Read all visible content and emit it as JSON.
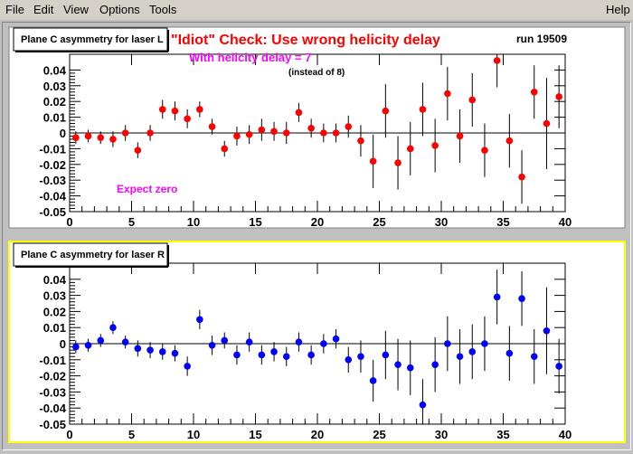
{
  "menu": {
    "file": "File",
    "edit": "Edit",
    "view": "View",
    "options": "Options",
    "tools": "Tools",
    "help": "Help"
  },
  "colors": {
    "top_markers": "#ff0000",
    "bottom_markers": "#0000ff",
    "annotation_red": "#ff0000",
    "annotation_magenta": "#ff00ff",
    "bottom_pad_border": "#ffff00"
  },
  "annotations": {
    "headline": "\"Idiot\" Check:  Use wrong helicity delay",
    "run": "run 19509",
    "delay": "With  helicity delay =  7",
    "instead": "(instead of 8)",
    "expect": "Expect zero"
  },
  "chart_data": [
    {
      "type": "scatter",
      "title": "Plane C asymmetry for laser L",
      "xlim": [
        0,
        40
      ],
      "ylim": [
        -0.05,
        0.05
      ],
      "xticks": [
        0,
        5,
        10,
        15,
        20,
        25,
        30,
        35,
        40
      ],
      "xtick_labels": [
        "0",
        "5",
        "10",
        "15",
        "20",
        "25",
        "30",
        "35",
        "40"
      ],
      "yticks": [
        -0.05,
        -0.04,
        -0.03,
        -0.02,
        -0.01,
        0,
        0.01,
        0.02,
        0.03,
        0.04
      ],
      "ytick_labels": [
        "-0.05",
        "-0.04",
        "-0.03",
        "-0.02",
        "-0.01",
        "0",
        "0.01",
        "0.02",
        "0.03",
        "0.04"
      ],
      "x": [
        0.5,
        1.5,
        2.5,
        3.5,
        4.5,
        5.5,
        6.5,
        7.5,
        8.5,
        9.5,
        10.5,
        11.5,
        12.5,
        13.5,
        14.5,
        15.5,
        16.5,
        17.5,
        18.5,
        19.5,
        20.5,
        21.5,
        22.5,
        23.5,
        24.5,
        25.5,
        26.5,
        27.5,
        28.5,
        29.5,
        30.5,
        31.5,
        32.5,
        33.5,
        34.5,
        35.5,
        36.5,
        37.5,
        38.5,
        39.5
      ],
      "y": [
        -0.003,
        -0.002,
        -0.003,
        -0.004,
        0.0,
        -0.011,
        0.0,
        0.015,
        0.014,
        0.009,
        0.015,
        0.004,
        -0.01,
        -0.002,
        -0.001,
        0.002,
        0.001,
        0.0,
        0.013,
        0.003,
        0.0,
        0.0,
        0.004,
        -0.005,
        -0.018,
        0.014,
        -0.019,
        -0.01,
        0.015,
        -0.008,
        0.025,
        -0.002,
        0.021,
        -0.011,
        0.046,
        -0.005,
        -0.028,
        0.026,
        0.006,
        0.023
      ],
      "err": [
        0.004,
        0.004,
        0.004,
        0.005,
        0.005,
        0.005,
        0.005,
        0.006,
        0.006,
        0.006,
        0.005,
        0.005,
        0.005,
        0.006,
        0.006,
        0.007,
        0.006,
        0.007,
        0.006,
        0.006,
        0.006,
        0.006,
        0.007,
        0.01,
        0.017,
        0.017,
        0.017,
        0.017,
        0.017,
        0.017,
        0.017,
        0.017,
        0.017,
        0.017,
        0.017,
        0.017,
        0.017,
        0.017,
        0.029,
        0.02
      ]
    },
    {
      "type": "scatter",
      "title": "Plane C asymmetry for laser R",
      "xlim": [
        0,
        40
      ],
      "ylim": [
        -0.05,
        0.05
      ],
      "xticks": [
        0,
        5,
        10,
        15,
        20,
        25,
        30,
        35,
        40
      ],
      "xtick_labels": [
        "0",
        "5",
        "10",
        "15",
        "20",
        "25",
        "30",
        "35",
        "40"
      ],
      "yticks": [
        -0.05,
        -0.04,
        -0.03,
        -0.02,
        -0.01,
        0,
        0.01,
        0.02,
        0.03,
        0.04
      ],
      "ytick_labels": [
        "-0.05",
        "-0.04",
        "-0.03",
        "-0.02",
        "-0.01",
        "0",
        "0.01",
        "0.02",
        "0.03",
        "0.04"
      ],
      "x": [
        0.5,
        1.5,
        2.5,
        3.5,
        4.5,
        5.5,
        6.5,
        7.5,
        8.5,
        9.5,
        10.5,
        11.5,
        12.5,
        13.5,
        14.5,
        15.5,
        16.5,
        17.5,
        18.5,
        19.5,
        20.5,
        21.5,
        22.5,
        23.5,
        24.5,
        25.5,
        26.5,
        27.5,
        28.5,
        29.5,
        30.5,
        31.5,
        32.5,
        33.5,
        34.5,
        35.5,
        36.5,
        37.5,
        38.5,
        39.5
      ],
      "y": [
        -0.002,
        -0.001,
        0.002,
        0.01,
        0.001,
        -0.003,
        -0.004,
        -0.005,
        -0.006,
        -0.014,
        0.015,
        -0.001,
        0.002,
        -0.007,
        0.001,
        -0.007,
        -0.005,
        -0.008,
        0.001,
        -0.007,
        0.0,
        0.003,
        -0.01,
        -0.008,
        -0.023,
        -0.007,
        -0.013,
        -0.015,
        -0.038,
        -0.013,
        0.0,
        -0.008,
        -0.005,
        0.0,
        0.029,
        -0.006,
        0.028,
        -0.008,
        0.008,
        -0.014
      ],
      "err": [
        0.004,
        0.004,
        0.004,
        0.004,
        0.004,
        0.005,
        0.005,
        0.005,
        0.005,
        0.006,
        0.006,
        0.006,
        0.005,
        0.006,
        0.006,
        0.006,
        0.006,
        0.006,
        0.006,
        0.006,
        0.006,
        0.006,
        0.008,
        0.01,
        0.013,
        0.015,
        0.016,
        0.017,
        0.016,
        0.017,
        0.017,
        0.017,
        0.017,
        0.017,
        0.017,
        0.017,
        0.017,
        0.017,
        0.027,
        0.017
      ]
    }
  ]
}
